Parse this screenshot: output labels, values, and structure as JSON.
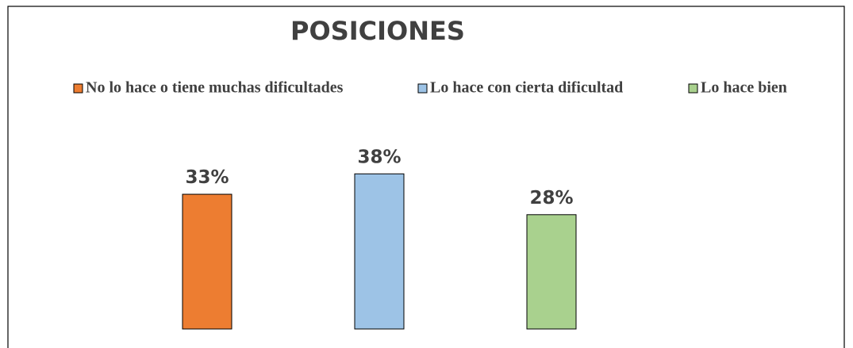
{
  "chart_data": {
    "type": "bar",
    "title": "POSICIONES",
    "series": [
      {
        "name": "No lo hace o tiene muchas dificultades",
        "color": "#ED7D31",
        "values": [
          33
        ],
        "value_labels": [
          "33%"
        ]
      },
      {
        "name": "Lo hace con cierta dificultad",
        "color": "#9DC3E6",
        "values": [
          38
        ],
        "value_labels": [
          "38%"
        ]
      },
      {
        "name": "Lo hace bien",
        "color": "#A9D18E",
        "values": [
          28
        ],
        "value_labels": [
          "28%"
        ]
      }
    ]
  }
}
